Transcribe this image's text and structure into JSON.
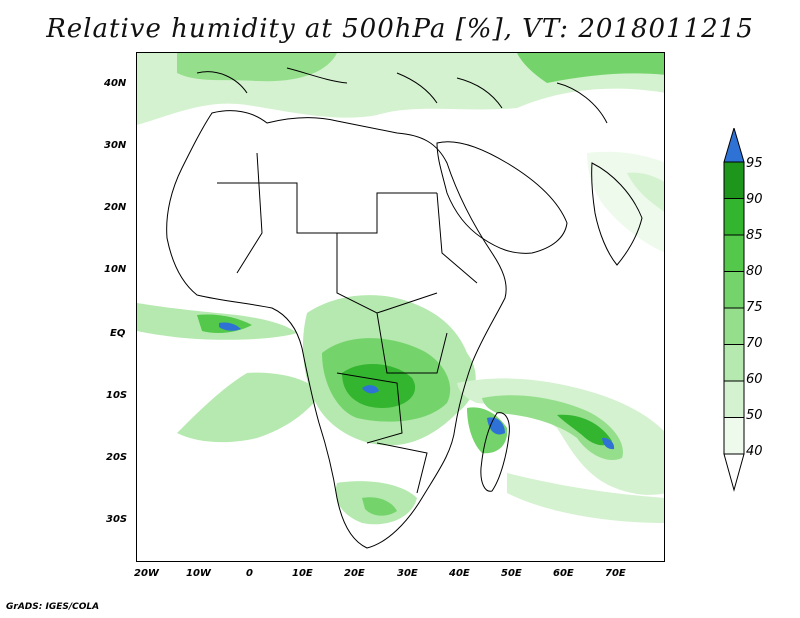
{
  "title": "Relative humidity at 500hPa [%], VT: 2018011215",
  "footer": "GrADS: IGES/COLA",
  "axes": {
    "lat_labels": [
      "40N",
      "30N",
      "20N",
      "10N",
      "EQ",
      "10S",
      "20S",
      "30S"
    ],
    "lon_labels": [
      "20W",
      "10W",
      "0",
      "10E",
      "20E",
      "30E",
      "40E",
      "50E",
      "60E",
      "70E"
    ]
  },
  "colorbar": {
    "levels": [
      "40",
      "50",
      "60",
      "70",
      "75",
      "80",
      "85",
      "90",
      "95"
    ],
    "colors": [
      "#eefaec",
      "#d4f2cf",
      "#b5e9af",
      "#95df8c",
      "#74d46b",
      "#53c84b",
      "#34b52f",
      "#1e961c",
      "#2f72d6"
    ]
  }
}
